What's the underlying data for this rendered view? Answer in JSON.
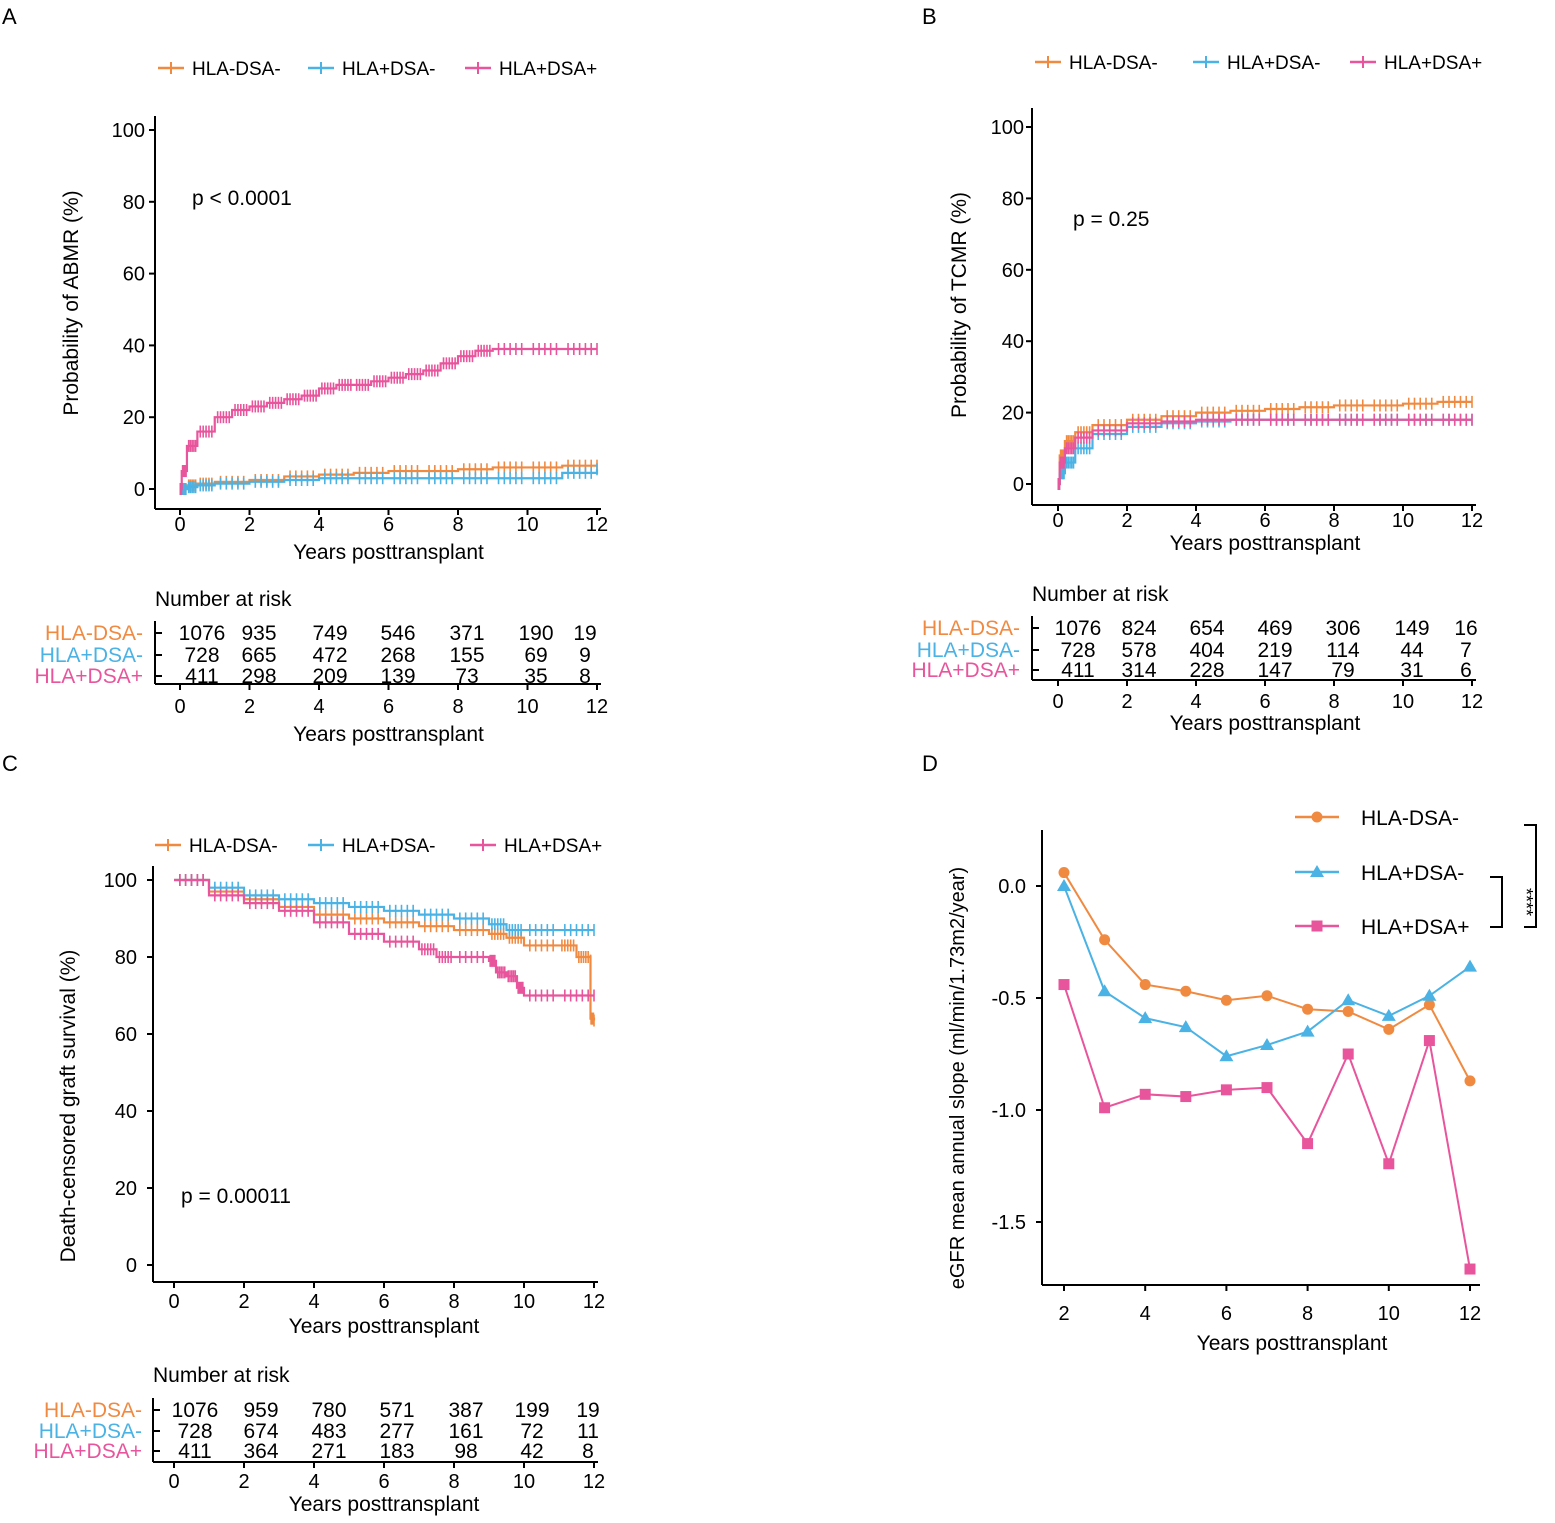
{
  "figure_title": "",
  "colors": {
    "HLA-DSA-": "#F08A41",
    "HLA+DSA-": "#4AB2E4",
    "HLA+DSA+": "#E8559C",
    "axis": "#000000"
  },
  "chart_data": [
    {
      "id": "A",
      "panel_label": "A",
      "type": "line",
      "subtype": "kaplan-meier",
      "title": "",
      "xlabel": "Years posttransplant",
      "ylabel": "Probability of ABMR (%)",
      "xlim": [
        0,
        12
      ],
      "ylim": [
        0,
        100
      ],
      "xticks": [
        "0",
        "2",
        "4",
        "6",
        "8",
        "10",
        "12"
      ],
      "yticks": [
        "0",
        "20",
        "40",
        "60",
        "80",
        "100"
      ],
      "legend": [
        "HLA-DSA-",
        "HLA+DSA-",
        "HLA+DSA+"
      ],
      "legend_position": "top",
      "annotation": "p < 0.0001",
      "series": [
        {
          "name": "HLA-DSA-",
          "x": [
            0,
            0.2,
            0.5,
            1,
            2,
            3,
            4,
            5,
            6,
            7,
            8,
            9,
            10,
            11,
            12
          ],
          "y": [
            0,
            1.0,
            1.5,
            2.0,
            2.5,
            3.5,
            4.0,
            4.5,
            5.0,
            5.0,
            5.5,
            6.0,
            6.0,
            6.5,
            6.5
          ]
        },
        {
          "name": "HLA+DSA-",
          "x": [
            0,
            0.2,
            0.5,
            1,
            2,
            3,
            4,
            5,
            6,
            7,
            8,
            9,
            10,
            11,
            12
          ],
          "y": [
            0,
            0.5,
            1.0,
            1.5,
            2.0,
            2.5,
            3.0,
            3.0,
            3.0,
            3.0,
            3.0,
            3.0,
            3.0,
            4.5,
            5.5
          ]
        },
        {
          "name": "HLA+DSA+",
          "x": [
            0,
            0.05,
            0.2,
            0.5,
            1,
            1.5,
            2,
            2.5,
            3,
            3.5,
            4,
            4.5,
            5,
            5.5,
            6,
            6.5,
            7,
            7.5,
            8,
            8.5,
            9,
            10,
            11,
            12
          ],
          "y": [
            0,
            5,
            12,
            16,
            20,
            22,
            23,
            24,
            25,
            26,
            28,
            29,
            29,
            30,
            31,
            32,
            33,
            35,
            37,
            38.5,
            39,
            39,
            39,
            39
          ]
        }
      ],
      "risk_table": {
        "title": "Number at risk",
        "times": [
          "0",
          "2",
          "4",
          "6",
          "8",
          "10",
          "12"
        ],
        "xlabel": "Years posttransplant",
        "rows": [
          {
            "name": "HLA-DSA-",
            "values": [
              "1076",
              "935",
              "749",
              "546",
              "371",
              "190",
              "19"
            ]
          },
          {
            "name": "HLA+DSA-",
            "values": [
              "728",
              "665",
              "472",
              "268",
              "155",
              "69",
              "9"
            ]
          },
          {
            "name": "HLA+DSA+",
            "values": [
              "411",
              "298",
              "209",
              "139",
              "73",
              "35",
              "8"
            ]
          }
        ]
      }
    },
    {
      "id": "B",
      "panel_label": "B",
      "type": "line",
      "subtype": "kaplan-meier",
      "title": "",
      "xlabel": "Years posttransplant",
      "ylabel": "Probability of TCMR (%)",
      "xlim": [
        0,
        12
      ],
      "ylim": [
        0,
        100
      ],
      "xticks": [
        "0",
        "2",
        "4",
        "6",
        "8",
        "10",
        "12"
      ],
      "yticks": [
        "0",
        "20",
        "40",
        "60",
        "80",
        "100"
      ],
      "legend": [
        "HLA-DSA-",
        "HLA+DSA-",
        "HLA+DSA+"
      ],
      "legend_position": "top",
      "annotation": "p = 0.25",
      "series": [
        {
          "name": "HLA-DSA-",
          "x": [
            0,
            0.05,
            0.2,
            0.5,
            1,
            2,
            3,
            4,
            5,
            6,
            7,
            8,
            9,
            10,
            11,
            12
          ],
          "y": [
            0,
            8,
            12,
            14.5,
            16.5,
            18,
            19,
            20,
            20.5,
            21,
            21.5,
            22,
            22,
            22.5,
            23,
            23
          ]
        },
        {
          "name": "HLA+DSA-",
          "x": [
            0,
            0.05,
            0.2,
            0.5,
            1,
            2,
            3,
            4,
            5,
            6,
            7,
            8,
            9,
            10,
            11,
            12
          ],
          "y": [
            0,
            3,
            6,
            10,
            14,
            16,
            17,
            17.5,
            18,
            18,
            18,
            18,
            18,
            18,
            18,
            18
          ]
        },
        {
          "name": "HLA+DSA+",
          "x": [
            0,
            0.05,
            0.2,
            0.5,
            1,
            2,
            3,
            4,
            5,
            6,
            7,
            8,
            9,
            10,
            11,
            12
          ],
          "y": [
            0,
            6,
            10,
            13,
            15,
            17,
            17.5,
            18,
            18,
            18,
            18,
            18,
            18,
            18,
            18,
            18
          ]
        }
      ],
      "risk_table": {
        "title": "Number at risk",
        "times": [
          "0",
          "2",
          "4",
          "6",
          "8",
          "10",
          "12"
        ],
        "xlabel": "Years posttransplant",
        "rows": [
          {
            "name": "HLA-DSA-",
            "values": [
              "1076",
              "824",
              "654",
              "469",
              "306",
              "149",
              "16"
            ]
          },
          {
            "name": "HLA+DSA-",
            "values": [
              "728",
              "578",
              "404",
              "219",
              "114",
              "44",
              "7"
            ]
          },
          {
            "name": "HLA+DSA+",
            "values": [
              "411",
              "314",
              "228",
              "147",
              "79",
              "31",
              "6"
            ]
          }
        ]
      }
    },
    {
      "id": "C",
      "panel_label": "C",
      "type": "line",
      "subtype": "kaplan-meier",
      "title": "",
      "xlabel": "Years posttransplant",
      "ylabel": "Death-censored graft survival (%)",
      "xlim": [
        0,
        12
      ],
      "ylim": [
        0,
        100
      ],
      "xticks": [
        "0",
        "2",
        "4",
        "6",
        "8",
        "10",
        "12"
      ],
      "yticks": [
        "0",
        "20",
        "40",
        "60",
        "80",
        "100"
      ],
      "legend": [
        "HLA-DSA-",
        "HLA+DSA-",
        "HLA+DSA+"
      ],
      "legend_position": "top",
      "annotation": "p = 0.00011",
      "series": [
        {
          "name": "HLA-DSA-",
          "x": [
            0,
            1,
            2,
            3,
            4,
            5,
            6,
            7,
            8,
            9,
            9.5,
            10,
            11,
            11.5,
            11.9,
            11.9,
            12
          ],
          "y": [
            100,
            97,
            95,
            93,
            91,
            90,
            89,
            88,
            87,
            86,
            85,
            83,
            83,
            80,
            79,
            64,
            63.5
          ]
        },
        {
          "name": "HLA+DSA-",
          "x": [
            0,
            1,
            2,
            3,
            4,
            5,
            6,
            7,
            8,
            9,
            9.5,
            10,
            11,
            12
          ],
          "y": [
            100,
            98,
            96,
            95,
            94,
            93,
            92,
            91,
            90,
            88.5,
            87,
            87,
            87,
            87
          ]
        },
        {
          "name": "HLA+DSA+",
          "x": [
            0,
            1,
            2,
            3,
            4,
            5,
            6,
            7,
            7.5,
            8,
            9,
            9.2,
            9.5,
            9.8,
            10,
            11,
            12
          ],
          "y": [
            100,
            96,
            94,
            92,
            89,
            86,
            84,
            82,
            80,
            80,
            79,
            76,
            75,
            72,
            70,
            70,
            70
          ]
        }
      ],
      "risk_table": {
        "title": "Number at risk",
        "times": [
          "0",
          "2",
          "4",
          "6",
          "8",
          "10",
          "12"
        ],
        "xlabel": "Years posttransplant",
        "rows": [
          {
            "name": "HLA-DSA-",
            "values": [
              "1076",
              "959",
              "780",
              "571",
              "387",
              "199",
              "19"
            ]
          },
          {
            "name": "HLA+DSA-",
            "values": [
              "728",
              "674",
              "483",
              "277",
              "161",
              "72",
              "11"
            ]
          },
          {
            "name": "HLA+DSA+",
            "values": [
              "411",
              "364",
              "271",
              "183",
              "98",
              "42",
              "8"
            ]
          }
        ]
      }
    },
    {
      "id": "D",
      "panel_label": "D",
      "type": "line",
      "title": "",
      "xlabel": "Years posttransplant",
      "ylabel": "eGFR mean annual slope (ml/min/1.73m2/year)",
      "xlim": [
        2,
        12
      ],
      "ylim": [
        -1.8,
        0.15
      ],
      "xticks": [
        "2",
        "4",
        "6",
        "8",
        "10",
        "12"
      ],
      "yticks": [
        "0.0",
        "-0.5",
        "-1.0",
        "-1.5"
      ],
      "legend": [
        "HLA-DSA-",
        "HLA+DSA-",
        "HLA+DSA+"
      ],
      "legend_position": "top-right",
      "significance": [
        {
          "groups": [
            "HLA+DSA-",
            "HLA+DSA+"
          ],
          "label": "****"
        },
        {
          "groups": [
            "HLA-DSA-",
            "HLA+DSA+"
          ],
          "label": "****"
        }
      ],
      "series": [
        {
          "name": "HLA-DSA-",
          "marker": "circle",
          "x": [
            2,
            3,
            4,
            5,
            6,
            7,
            8,
            9,
            10,
            11,
            12
          ],
          "y": [
            0.06,
            -0.24,
            -0.44,
            -0.47,
            -0.51,
            -0.49,
            -0.55,
            -0.56,
            -0.64,
            -0.53,
            -0.87
          ]
        },
        {
          "name": "HLA+DSA-",
          "marker": "triangle",
          "x": [
            2,
            3,
            4,
            5,
            6,
            7,
            8,
            9,
            10,
            11,
            12
          ],
          "y": [
            0.0,
            -0.47,
            -0.59,
            -0.63,
            -0.76,
            -0.71,
            -0.65,
            -0.51,
            -0.58,
            -0.49,
            -0.36
          ]
        },
        {
          "name": "HLA+DSA+",
          "marker": "square",
          "x": [
            2,
            3,
            4,
            5,
            6,
            7,
            8,
            9,
            10,
            11,
            12
          ],
          "y": [
            -0.44,
            -0.99,
            -0.93,
            -0.94,
            -0.91,
            -0.9,
            -1.15,
            -0.75,
            -1.24,
            -0.69,
            -1.71
          ]
        }
      ]
    }
  ]
}
